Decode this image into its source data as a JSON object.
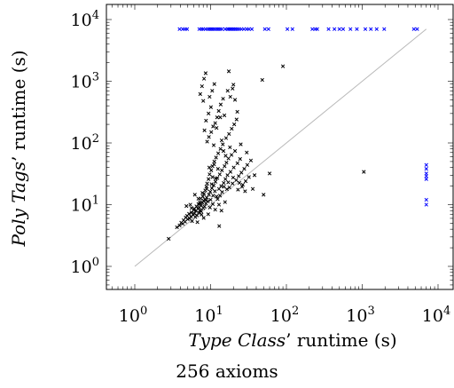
{
  "chart_data": {
    "type": "scatter",
    "xscale": "log",
    "yscale": "log",
    "xlim": [
      1,
      10000
    ],
    "ylim": [
      1,
      10000
    ],
    "x_ticks": [
      {
        "base": "10",
        "exp": "0",
        "value": 1
      },
      {
        "base": "10",
        "exp": "1",
        "value": 10
      },
      {
        "base": "10",
        "exp": "2",
        "value": 100
      },
      {
        "base": "10",
        "exp": "3",
        "value": 1000
      },
      {
        "base": "10",
        "exp": "4",
        "value": 10000
      }
    ],
    "y_ticks": [
      {
        "base": "10",
        "exp": "0",
        "value": 1
      },
      {
        "base": "10",
        "exp": "1",
        "value": 10
      },
      {
        "base": "10",
        "exp": "2",
        "value": 100
      },
      {
        "base": "10",
        "exp": "3",
        "value": 1000
      },
      {
        "base": "10",
        "exp": "4",
        "value": 10000
      }
    ],
    "xlabel_italic": "Type Class",
    "xlabel_rest": "’ runtime (s)",
    "ylabel_italic": "Poly Tags",
    "ylabel_rest": "’ runtime (s)",
    "caption": "256 axioms",
    "diagonal": {
      "from": 1,
      "to": 7000,
      "color": "#b8b8b8"
    },
    "grid": false,
    "legend": "none",
    "colors": {
      "regular": "#000000",
      "timeout": "#0000ff"
    },
    "series": [
      {
        "color_key": "regular",
        "points": [
          [
            2.8,
            2.8
          ],
          [
            3.6,
            4.3
          ],
          [
            3.9,
            4.6
          ],
          [
            4.1,
            5.1
          ],
          [
            4.3,
            4.9
          ],
          [
            4.4,
            5.6
          ],
          [
            4.6,
            5.3
          ],
          [
            4.7,
            6.2
          ],
          [
            4.9,
            6.6
          ],
          [
            5.0,
            5.8
          ],
          [
            5.2,
            7.1
          ],
          [
            5.3,
            6.0
          ],
          [
            5.5,
            6.4
          ],
          [
            5.6,
            7.5
          ],
          [
            5.7,
            5.4
          ],
          [
            5.9,
            6.8
          ],
          [
            6.0,
            8.2
          ],
          [
            6.1,
            7.2
          ],
          [
            6.3,
            6.3
          ],
          [
            6.4,
            7.9
          ],
          [
            6.5,
            9.4
          ],
          [
            6.6,
            6.7
          ],
          [
            6.8,
            8.6
          ],
          [
            6.9,
            10.2
          ],
          [
            7.0,
            7.4
          ],
          [
            7.1,
            9.0
          ],
          [
            7.2,
            11.0
          ],
          [
            7.3,
            8.1
          ],
          [
            7.4,
            12.6
          ],
          [
            7.5,
            9.7
          ],
          [
            7.6,
            6.9
          ],
          [
            7.8,
            10.8
          ],
          [
            7.9,
            13.5
          ],
          [
            8.0,
            8.8
          ],
          [
            8.1,
            11.6
          ],
          [
            8.2,
            15.0
          ],
          [
            8.3,
            9.3
          ],
          [
            8.4,
            12.2
          ],
          [
            8.5,
            17.0
          ],
          [
            8.7,
            10.4
          ],
          [
            8.8,
            19.5
          ],
          [
            8.9,
            13.0
          ],
          [
            9.0,
            22.0
          ],
          [
            9.2,
            11.3
          ],
          [
            9.4,
            26.0
          ],
          [
            9.5,
            14.5
          ],
          [
            9.7,
            31.0
          ],
          [
            9.9,
            16.2
          ],
          [
            10.0,
            12.0
          ],
          [
            10.2,
            36.0
          ],
          [
            10.4,
            18.5
          ],
          [
            10.6,
            42.0
          ],
          [
            10.8,
            14.0
          ],
          [
            11.0,
            20.5
          ],
          [
            11.2,
            50.0
          ],
          [
            11.4,
            16.5
          ],
          [
            11.6,
            23.5
          ],
          [
            11.8,
            58.0
          ],
          [
            12.0,
            13.5
          ],
          [
            12.3,
            27.0
          ],
          [
            12.6,
            68.0
          ],
          [
            12.9,
            18.0
          ],
          [
            13.2,
            31.0
          ],
          [
            13.5,
            80.0
          ],
          [
            13.8,
            20.0
          ],
          [
            14.1,
            36.0
          ],
          [
            14.5,
            95.0
          ],
          [
            14.9,
            22.5
          ],
          [
            15.3,
            42.0
          ],
          [
            15.7,
            26.0
          ],
          [
            16.2,
            48.0
          ],
          [
            16.7,
            30.0
          ],
          [
            17.2,
            56.0
          ],
          [
            17.7,
            19.0
          ],
          [
            18.3,
            34.0
          ],
          [
            18.9,
            64.0
          ],
          [
            19.5,
            22.0
          ],
          [
            20.2,
            40.0
          ],
          [
            21.0,
            74.0
          ],
          [
            21.8,
            25.0
          ],
          [
            22.6,
            47.0
          ],
          [
            23.5,
            29.0
          ],
          [
            24.5,
            55.0
          ],
          [
            25.5,
            33.0
          ],
          [
            26.6,
            21.0
          ],
          [
            27.8,
            38.0
          ],
          [
            29.0,
            24.0
          ],
          [
            30.5,
            44.0
          ],
          [
            32.0,
            28.0
          ],
          [
            34.0,
            52.0
          ],
          [
            36.0,
            18.0
          ],
          [
            38.0,
            30.0
          ],
          [
            9.0,
            105.0
          ],
          [
            9.5,
            125.0
          ],
          [
            10.2,
            150.0
          ],
          [
            10.8,
            185.0
          ],
          [
            11.5,
            210.0
          ],
          [
            12.2,
            260.0
          ],
          [
            8.3,
            160.0
          ],
          [
            8.7,
            230.0
          ],
          [
            9.4,
            300.0
          ],
          [
            10.1,
            380.0
          ],
          [
            12.8,
            330.0
          ],
          [
            13.6,
            420.0
          ],
          [
            14.6,
            520.0
          ],
          [
            16.0,
            120.0
          ],
          [
            17.5,
            140.0
          ],
          [
            19.0,
            170.0
          ],
          [
            20.5,
            200.0
          ],
          [
            22.0,
            240.0
          ],
          [
            7.3,
            620.0
          ],
          [
            7.7,
            830.0
          ],
          [
            8.2,
            1100.0
          ],
          [
            8.6,
            1350.0
          ],
          [
            10.5,
            700.0
          ],
          [
            11.2,
            900.0
          ],
          [
            16.8,
            700.0
          ],
          [
            17.4,
            1450.0
          ],
          [
            18.2,
            560.0
          ],
          [
            19.5,
            760.0
          ],
          [
            21.0,
            500.0
          ],
          [
            22.5,
            320.0
          ],
          [
            20.0,
            880.0
          ],
          [
            8.0,
            480.0
          ],
          [
            9.7,
            560.0
          ],
          [
            15.2,
            280.0
          ],
          [
            13.4,
            260.0
          ],
          [
            12.0,
            175.0
          ],
          [
            11.0,
            92.0
          ],
          [
            14.0,
            110.0
          ],
          [
            18.0,
            85.0
          ],
          [
            25.0,
            95.0
          ],
          [
            48.0,
            1050.0
          ],
          [
            90.0,
            1750.0
          ],
          [
            60.0,
            32.0
          ],
          [
            50.0,
            14.5
          ],
          [
            30.0,
            70.0
          ],
          [
            6.2,
            14.5
          ],
          [
            4.8,
            9.5
          ],
          [
            5.6,
            8.8
          ],
          [
            6.7,
            5.2
          ],
          [
            7.5,
            7.8
          ],
          [
            8.1,
            6.1
          ],
          [
            9.3,
            7.0
          ],
          [
            10.7,
            10.2
          ],
          [
            12.4,
            12.3
          ],
          [
            14.2,
            16.0
          ],
          [
            16.4,
            17.8
          ],
          [
            13.0,
            4.5
          ],
          [
            11.5,
            8.3
          ],
          [
            9.8,
            9.0
          ],
          [
            8.6,
            11.8
          ],
          [
            7.2,
            10.3
          ],
          [
            6.1,
            8.6
          ],
          [
            5.4,
            10.0
          ],
          [
            6.9,
            12.5
          ],
          [
            7.8,
            15.5
          ],
          [
            8.9,
            18.0
          ],
          [
            10.3,
            21.5
          ],
          [
            11.7,
            26.5
          ],
          [
            13.3,
            14.0
          ],
          [
            15.0,
            19.5
          ],
          [
            17.1,
            23.0
          ],
          [
            19.8,
            27.5
          ],
          [
            23.0,
            17.5
          ],
          [
            26.0,
            19.5
          ],
          [
            28.5,
            16.5
          ],
          [
            24.0,
            22.5
          ],
          [
            15.8,
            62.0
          ],
          [
            14.8,
            74.0
          ],
          [
            12.5,
            38.0
          ],
          [
            10.6,
            28.0
          ],
          [
            9.6,
            40.0
          ],
          [
            11.1,
            45.0
          ],
          [
            13.9,
            8.0
          ],
          [
            15.5,
            11.0
          ],
          [
            12.9,
            10.0
          ],
          [
            1050.0,
            34.0
          ]
        ]
      },
      {
        "color_key": "timeout",
        "points": [
          [
            3.9,
            7000
          ],
          [
            4.3,
            7000
          ],
          [
            4.6,
            7000
          ],
          [
            4.9,
            7000
          ],
          [
            7.1,
            7000
          ],
          [
            7.6,
            7000
          ],
          [
            8.0,
            7000
          ],
          [
            8.6,
            7000
          ],
          [
            9.2,
            7000
          ],
          [
            9.7,
            7000
          ],
          [
            10.2,
            7000
          ],
          [
            10.7,
            7000
          ],
          [
            11.3,
            7000
          ],
          [
            12.0,
            7000
          ],
          [
            12.6,
            7000
          ],
          [
            13.3,
            7000
          ],
          [
            14.1,
            7000
          ],
          [
            15.6,
            7000
          ],
          [
            16.7,
            7000
          ],
          [
            17.5,
            7000
          ],
          [
            18.3,
            7000
          ],
          [
            19.2,
            7000
          ],
          [
            20.2,
            7000
          ],
          [
            21.3,
            7000
          ],
          [
            22.5,
            7000
          ],
          [
            23.8,
            7000
          ],
          [
            25.5,
            7000
          ],
          [
            27.5,
            7000
          ],
          [
            30.0,
            7000
          ],
          [
            32.0,
            7000
          ],
          [
            35.0,
            7000
          ],
          [
            52.0,
            7000
          ],
          [
            58.0,
            7000
          ],
          [
            103.0,
            7000
          ],
          [
            120.0,
            7000
          ],
          [
            220.0,
            7000
          ],
          [
            240.0,
            7000
          ],
          [
            255.0,
            7000
          ],
          [
            360.0,
            7000
          ],
          [
            430.0,
            7000
          ],
          [
            500.0,
            7000
          ],
          [
            560.0,
            7000
          ],
          [
            700.0,
            7000
          ],
          [
            850.0,
            7000
          ],
          [
            1100.0,
            7000
          ],
          [
            1300.0,
            7000
          ],
          [
            1550.0,
            7000
          ],
          [
            1950.0,
            7000
          ],
          [
            4800.0,
            7000
          ],
          [
            5300.0,
            7000
          ],
          [
            7000,
            44
          ],
          [
            7000,
            38
          ],
          [
            7000,
            32
          ],
          [
            7000,
            29
          ],
          [
            7000,
            26
          ],
          [
            7000,
            12
          ],
          [
            7000,
            10
          ]
        ]
      }
    ]
  }
}
